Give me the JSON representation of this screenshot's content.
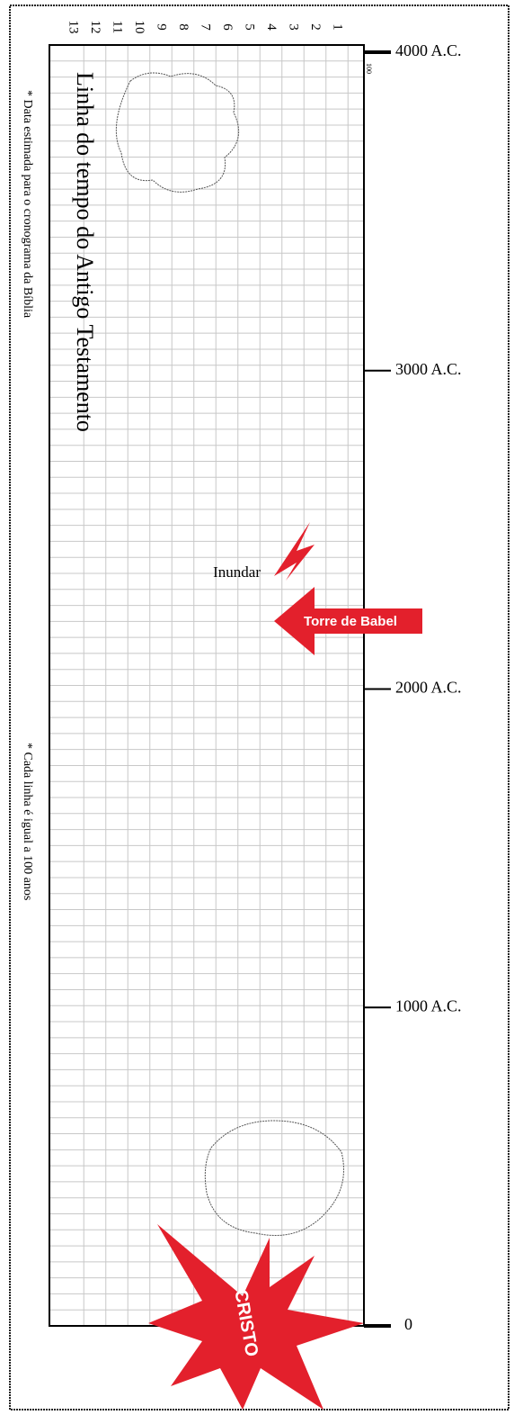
{
  "title": "Linha do tempo do Antigo Testamento",
  "notes": [
    "* Data estimada para o cronograma da Bíblia",
    "* Cada linha é igual a 100 anos"
  ],
  "columns": [
    "1",
    "2",
    "3",
    "4",
    "5",
    "6",
    "7",
    "8",
    "9",
    "10",
    "11",
    "12",
    "13"
  ],
  "scale_label": "100",
  "years": [
    "4000 A.C.",
    "3000 A.C.",
    "2000 A.C.",
    "1000 A.C.",
    "0"
  ],
  "events": {
    "flood": "Inundar",
    "babel": "Torre de Babel",
    "christ": "CRISTO"
  }
}
